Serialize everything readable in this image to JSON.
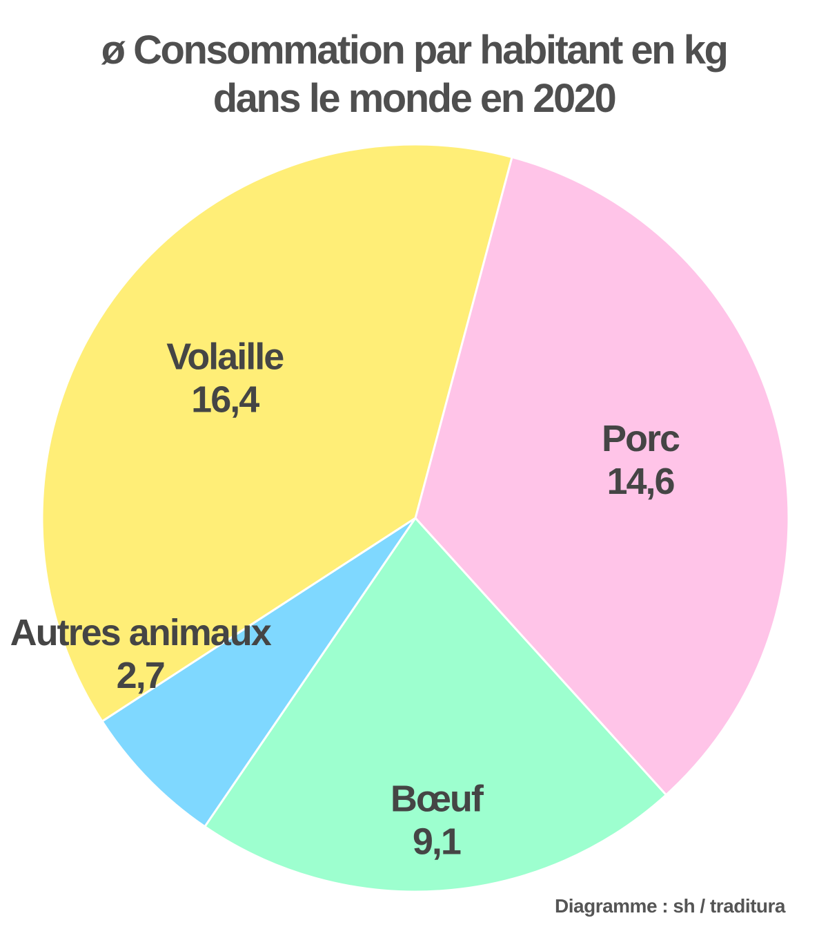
{
  "title_lines": [
    "ø Consommation par habitant en kg",
    "dans le monde en 2020"
  ],
  "source": "Diagramme : sh / traditura",
  "chart_data": {
    "type": "pie",
    "title": "ø Consommation par habitant en kg dans le monde en 2020",
    "slices": [
      {
        "label": "Porc",
        "value": 14.6,
        "value_text": "14,6",
        "color": "#ffc4e8"
      },
      {
        "label": "Bœuf",
        "value": 9.1,
        "value_text": "9,1",
        "color": "#9dffcf"
      },
      {
        "label": "Autres animaux",
        "value": 2.7,
        "value_text": "2,7",
        "color": "#7fd8ff"
      },
      {
        "label": "Volaille",
        "value": 16.4,
        "value_text": "16,4",
        "color": "#ffee77"
      }
    ],
    "start_angle_deg": 15,
    "direction": "clockwise",
    "legend": "none",
    "labels": "inside"
  }
}
